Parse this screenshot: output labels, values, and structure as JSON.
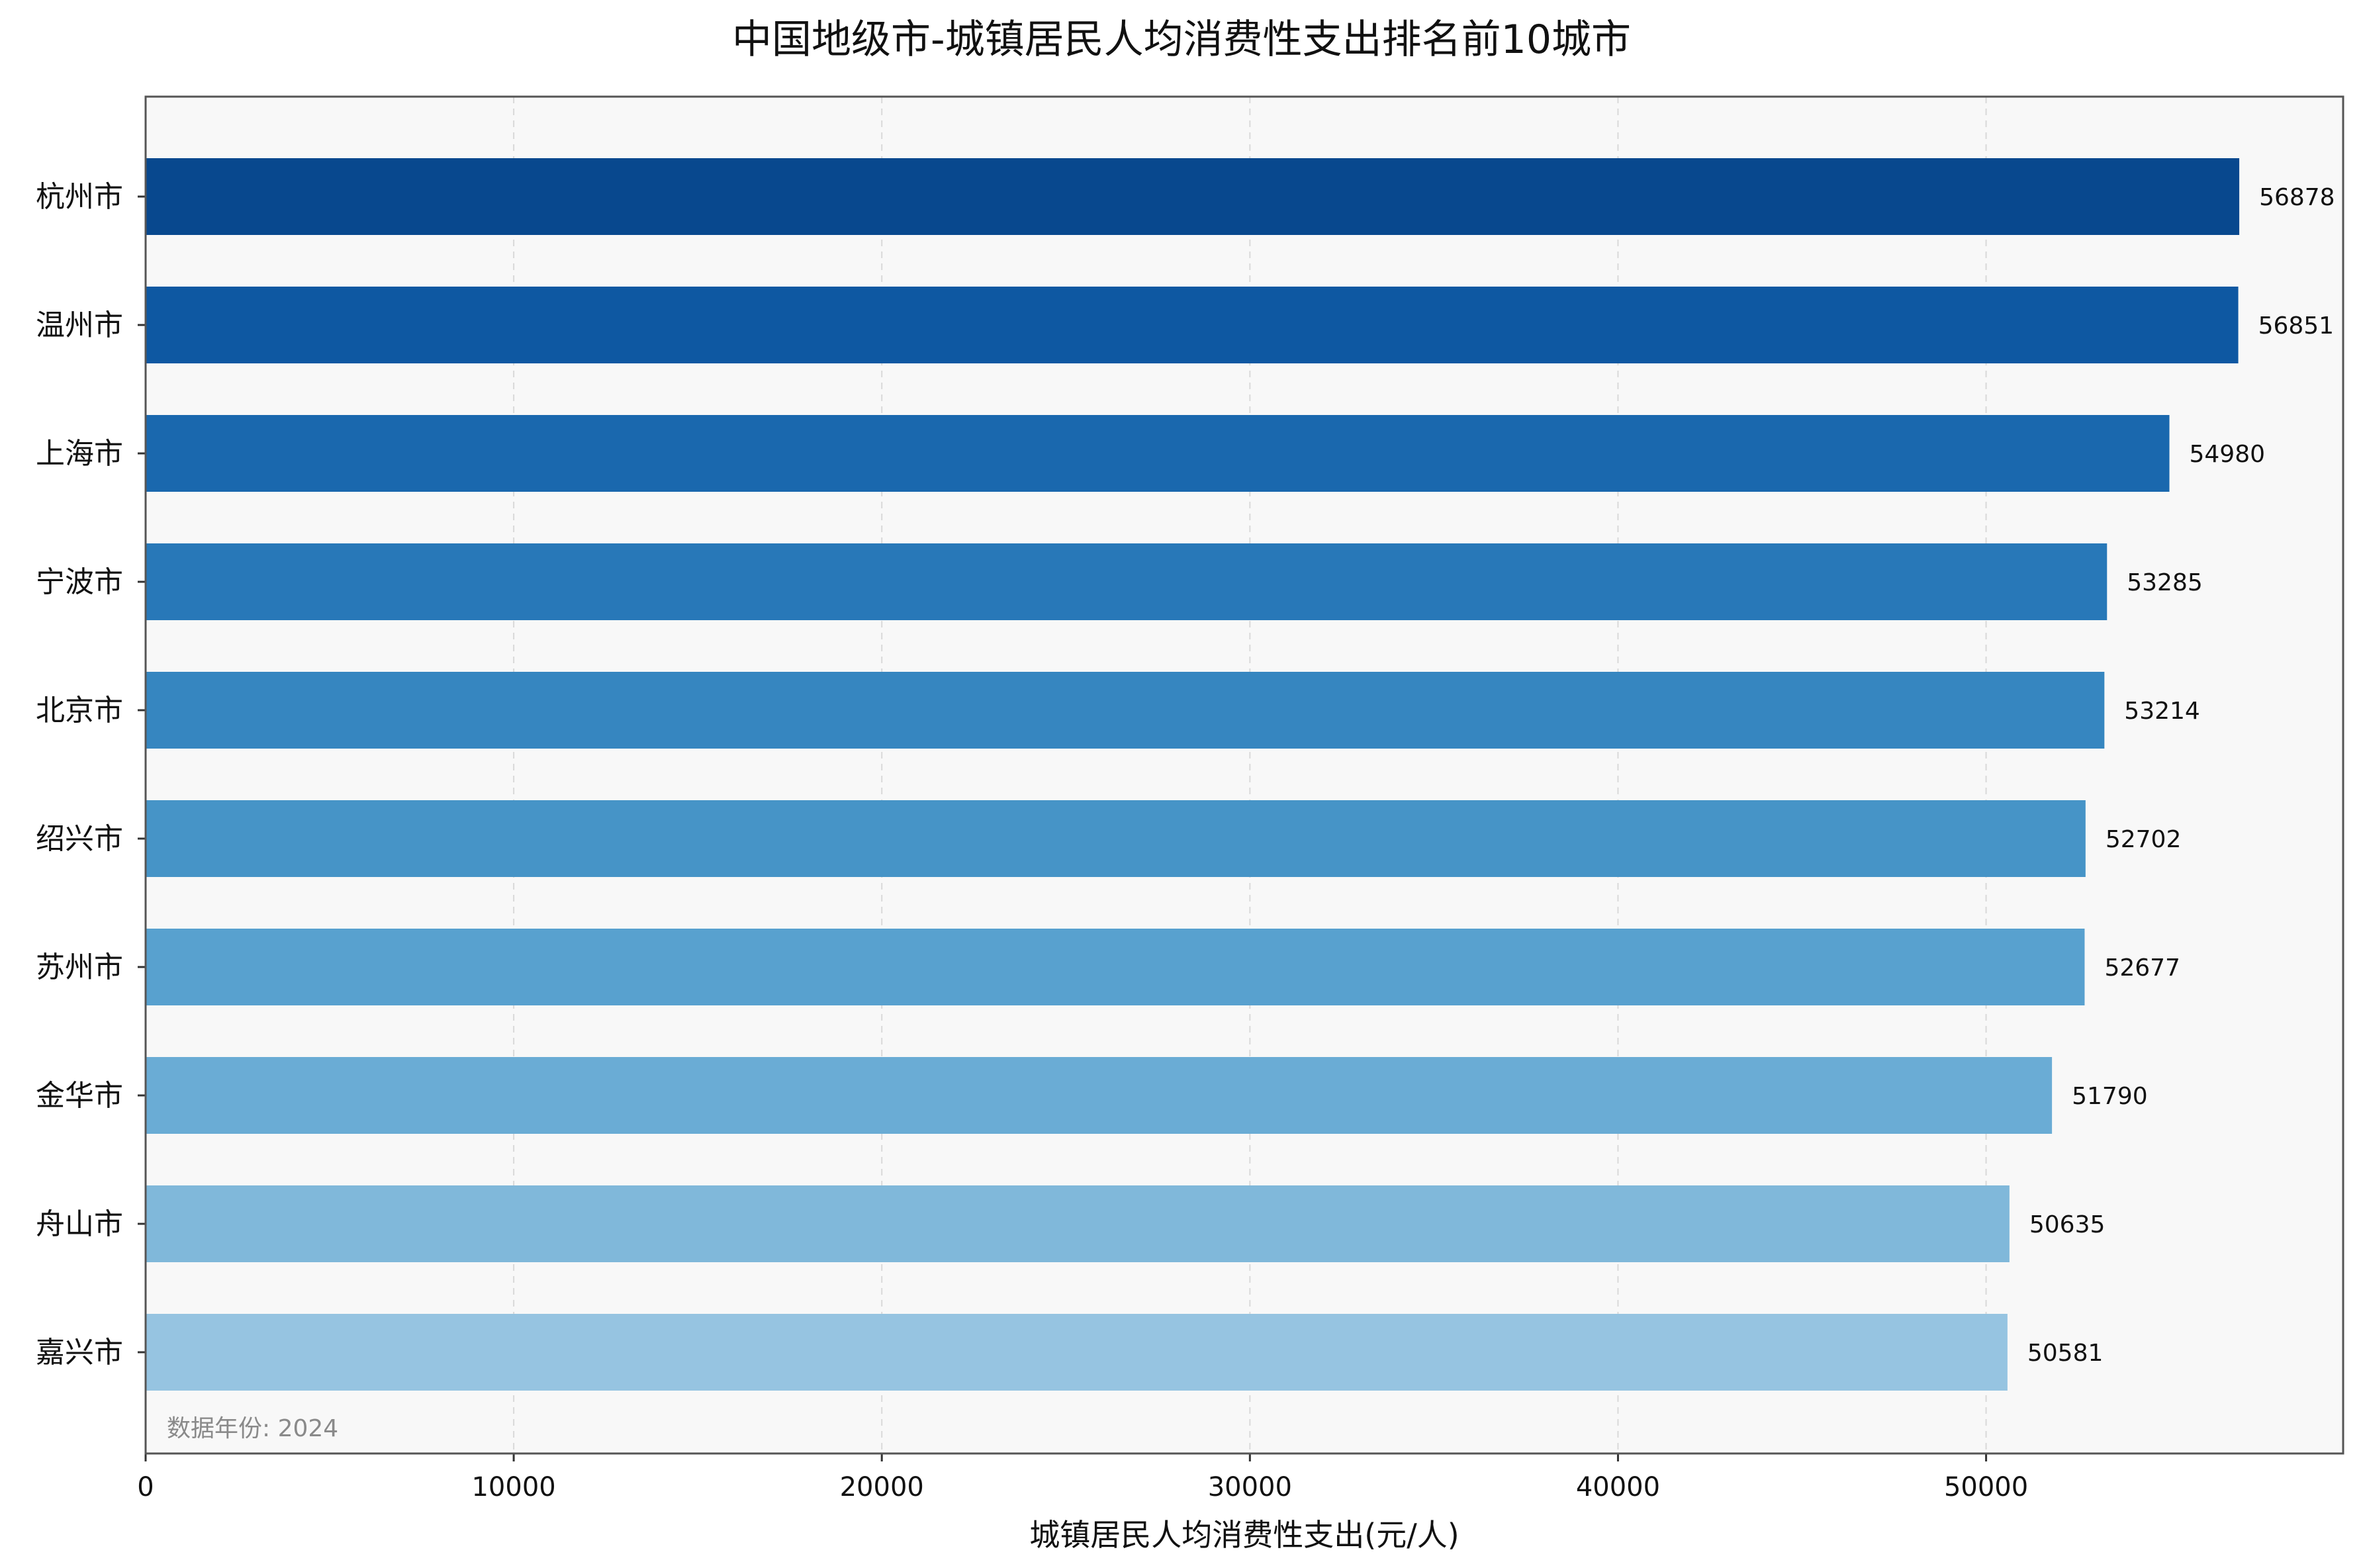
{
  "chart_data": {
    "type": "bar",
    "orientation": "horizontal",
    "title": "中国地级市-城镇居民人均消费性支出排名前10城市",
    "xlabel": "城镇居民人均消费性支出(元/人)",
    "ylabel": "",
    "categories": [
      "杭州市",
      "温州市",
      "上海市",
      "宁波市",
      "北京市",
      "绍兴市",
      "苏州市",
      "金华市",
      "舟山市",
      "嘉兴市"
    ],
    "values": [
      56878,
      56851,
      54980,
      53285,
      53214,
      52702,
      52677,
      51790,
      50635,
      50581
    ],
    "data_labels": [
      "56878",
      "56851",
      "54980",
      "53285",
      "53214",
      "52702",
      "52677",
      "51790",
      "50635",
      "50581"
    ],
    "xlim": [
      0,
      59700
    ],
    "xticks": [
      0,
      10000,
      20000,
      30000,
      40000,
      50000
    ],
    "xtick_labels": [
      "0",
      "10000",
      "20000",
      "30000",
      "40000",
      "50000"
    ],
    "grid": true,
    "note": "数据年份: 2024",
    "colors": [
      "#08488E",
      "#0E58A2",
      "#1A68AE",
      "#2878B8",
      "#3686C0",
      "#4694C7",
      "#58A1CF",
      "#6AACD5",
      "#80B8DA",
      "#96C4E1"
    ],
    "plot_background": "#F8F8F8"
  }
}
